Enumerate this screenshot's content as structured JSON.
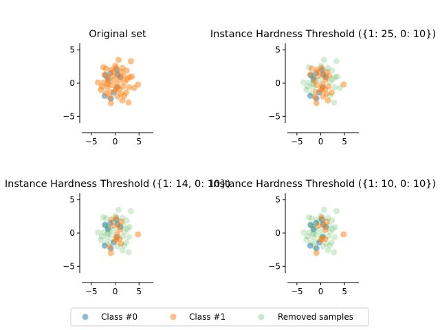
{
  "colors": {
    "class0": "#1f77b4",
    "class1": "#ff7f0e",
    "removed": "#2ca02c"
  },
  "legend": {
    "placement": "bottom-center",
    "entries": [
      "Class #0",
      "Class #1",
      "Removed samples"
    ]
  },
  "chart_data": [
    {
      "type": "scatter",
      "title": "Original set",
      "xlim": [
        -7,
        8
      ],
      "ylim": [
        -6,
        6
      ],
      "xticks": [
        -5,
        0,
        5
      ],
      "yticks": [
        -5,
        0,
        5
      ],
      "grid": false,
      "series": [
        {
          "name": "Class #0",
          "points": [
            [
              -2.1,
              1.2
            ],
            [
              -1.0,
              1.5
            ],
            [
              0.3,
              2.0
            ],
            [
              0.5,
              1.3
            ],
            [
              -1.5,
              0.6
            ],
            [
              -2.2,
              -1.9
            ],
            [
              -0.9,
              -2.3
            ],
            [
              0.4,
              -0.6
            ],
            [
              1.1,
              0.9
            ],
            [
              -0.3,
              -1.4
            ]
          ]
        },
        {
          "name": "Class #1",
          "points": [
            [
              -2.5,
              2.4
            ],
            [
              -1.9,
              2.2
            ],
            [
              -0.8,
              2.0
            ],
            [
              0.2,
              2.3
            ],
            [
              1.5,
              2.3
            ],
            [
              3.3,
              3.3
            ],
            [
              0.7,
              3.5
            ],
            [
              2.4,
              1.9
            ],
            [
              -3.6,
              0.1
            ],
            [
              -2.2,
              1.3
            ],
            [
              -1.6,
              0.9
            ],
            [
              -0.6,
              1.1
            ],
            [
              0.6,
              1.2
            ],
            [
              1.8,
              1.1
            ],
            [
              3.0,
              0.9
            ],
            [
              3.5,
              1.0
            ],
            [
              -2.4,
              0.1
            ],
            [
              -1.3,
              0.3
            ],
            [
              -0.2,
              0.5
            ],
            [
              1.0,
              0.5
            ],
            [
              2.0,
              0.2
            ],
            [
              -3.0,
              -1.0
            ],
            [
              -1.7,
              -0.6
            ],
            [
              -0.8,
              -0.3
            ],
            [
              0.4,
              -0.2
            ],
            [
              1.6,
              -0.5
            ],
            [
              2.9,
              -0.6
            ],
            [
              4.0,
              -0.7
            ],
            [
              4.8,
              -0.2
            ],
            [
              -2.0,
              -1.5
            ],
            [
              -1.0,
              -1.3
            ],
            [
              0.1,
              -1.1
            ],
            [
              1.2,
              -1.6
            ],
            [
              2.3,
              -1.4
            ],
            [
              -1.2,
              -2.1
            ],
            [
              0.5,
              -2.0
            ],
            [
              1.5,
              -2.6
            ],
            [
              2.8,
              -2.9
            ],
            [
              -0.9,
              -3.0
            ],
            [
              0.2,
              -0.8
            ],
            [
              -0.4,
              1.7
            ],
            [
              1.3,
              1.7
            ],
            [
              -2.8,
              -0.5
            ],
            [
              0.9,
              -0.9
            ],
            [
              2.5,
              0.6
            ],
            [
              -1.6,
              -0.1
            ],
            [
              0.0,
              2.6
            ],
            [
              1.9,
              -1.9
            ]
          ]
        }
      ]
    },
    {
      "type": "scatter",
      "title": "Instance Hardness Threshold ({1: 25, 0: 10})",
      "xlim": [
        -7,
        8
      ],
      "ylim": [
        -6,
        6
      ],
      "xticks": [
        -5,
        0,
        5
      ],
      "yticks": [
        -5,
        0,
        5
      ],
      "grid": false,
      "series": [
        {
          "name": "Class #0",
          "points": [
            [
              -2.1,
              1.2
            ],
            [
              -1.0,
              1.5
            ],
            [
              0.3,
              2.0
            ],
            [
              0.5,
              1.3
            ],
            [
              -1.5,
              0.6
            ],
            [
              -2.2,
              -1.9
            ],
            [
              -0.9,
              -2.3
            ],
            [
              0.4,
              -0.6
            ],
            [
              1.1,
              0.9
            ],
            [
              -0.3,
              -1.4
            ]
          ]
        },
        {
          "name": "Class #1",
          "points": [
            [
              -1.9,
              2.2
            ],
            [
              -0.8,
              2.0
            ],
            [
              0.2,
              2.3
            ],
            [
              -2.2,
              1.3
            ],
            [
              -0.6,
              1.1
            ],
            [
              0.6,
              1.2
            ],
            [
              1.8,
              1.1
            ],
            [
              -1.3,
              0.3
            ],
            [
              1.0,
              0.5
            ],
            [
              -0.8,
              -0.3
            ],
            [
              0.4,
              -0.2
            ],
            [
              1.6,
              -0.5
            ],
            [
              4.8,
              -0.2
            ],
            [
              -1.0,
              -1.3
            ],
            [
              0.1,
              -1.1
            ],
            [
              1.2,
              -1.6
            ],
            [
              2.3,
              -1.4
            ],
            [
              -1.2,
              -2.1
            ],
            [
              0.5,
              -2.0
            ],
            [
              1.5,
              -2.6
            ],
            [
              -0.9,
              -3.0
            ],
            [
              0.2,
              -0.8
            ],
            [
              -0.4,
              1.7
            ],
            [
              1.3,
              1.7
            ],
            [
              0.9,
              -0.9
            ]
          ]
        },
        {
          "name": "Removed samples",
          "points": [
            [
              -2.5,
              2.4
            ],
            [
              1.5,
              2.3
            ],
            [
              3.3,
              3.3
            ],
            [
              0.7,
              3.5
            ],
            [
              2.4,
              1.9
            ],
            [
              -3.6,
              0.1
            ],
            [
              -1.6,
              0.9
            ],
            [
              3.0,
              0.9
            ],
            [
              3.5,
              1.0
            ],
            [
              -2.4,
              0.1
            ],
            [
              -0.2,
              0.5
            ],
            [
              2.0,
              0.2
            ],
            [
              -3.0,
              -1.0
            ],
            [
              -1.7,
              -0.6
            ],
            [
              2.9,
              -0.6
            ],
            [
              4.0,
              -0.7
            ],
            [
              -2.0,
              -1.5
            ],
            [
              2.8,
              -2.9
            ],
            [
              -2.8,
              -0.5
            ],
            [
              2.5,
              0.6
            ],
            [
              -1.6,
              -0.1
            ],
            [
              0.0,
              2.6
            ],
            [
              1.9,
              -1.9
            ]
          ]
        }
      ]
    },
    {
      "type": "scatter",
      "title": "Instance Hardness Threshold ({1: 14, 0: 10})",
      "xlim": [
        -7,
        8
      ],
      "ylim": [
        -6,
        6
      ],
      "xticks": [
        -5,
        0,
        5
      ],
      "yticks": [
        -5,
        0,
        5
      ],
      "grid": false,
      "series": [
        {
          "name": "Class #0",
          "points": [
            [
              -2.1,
              1.2
            ],
            [
              -1.0,
              1.5
            ],
            [
              0.3,
              2.0
            ],
            [
              0.5,
              1.3
            ],
            [
              -1.5,
              0.6
            ],
            [
              -2.2,
              -1.9
            ],
            [
              -0.9,
              -2.3
            ],
            [
              0.4,
              -0.6
            ],
            [
              1.1,
              0.9
            ],
            [
              -0.3,
              -1.4
            ]
          ]
        },
        {
          "name": "Class #1",
          "points": [
            [
              -0.8,
              2.0
            ],
            [
              0.2,
              2.3
            ],
            [
              -0.6,
              1.1
            ],
            [
              0.6,
              1.2
            ],
            [
              1.0,
              0.5
            ],
            [
              0.4,
              -0.2
            ],
            [
              4.8,
              -0.2
            ],
            [
              0.1,
              -1.1
            ],
            [
              1.2,
              -1.6
            ],
            [
              -1.2,
              -2.1
            ],
            [
              -0.9,
              -3.0
            ],
            [
              0.2,
              -0.8
            ],
            [
              1.3,
              1.7
            ],
            [
              0.9,
              -0.9
            ]
          ]
        },
        {
          "name": "Removed samples",
          "points": [
            [
              -2.5,
              2.4
            ],
            [
              -1.9,
              2.2
            ],
            [
              1.5,
              2.3
            ],
            [
              3.3,
              3.3
            ],
            [
              0.7,
              3.5
            ],
            [
              2.4,
              1.9
            ],
            [
              -3.6,
              0.1
            ],
            [
              -2.2,
              1.3
            ],
            [
              -1.6,
              0.9
            ],
            [
              1.8,
              1.1
            ],
            [
              3.0,
              0.9
            ],
            [
              -2.4,
              0.1
            ],
            [
              -1.3,
              0.3
            ],
            [
              -0.2,
              0.5
            ],
            [
              2.0,
              0.2
            ],
            [
              -3.0,
              -1.0
            ],
            [
              -1.7,
              -0.6
            ],
            [
              -0.8,
              -0.3
            ],
            [
              1.6,
              -0.5
            ],
            [
              2.9,
              -0.6
            ],
            [
              -2.0,
              -1.5
            ],
            [
              -1.0,
              -1.3
            ],
            [
              2.3,
              -1.4
            ],
            [
              0.5,
              -2.0
            ],
            [
              1.5,
              -2.6
            ],
            [
              2.8,
              -2.9
            ],
            [
              -0.4,
              1.7
            ],
            [
              -2.8,
              -0.5
            ],
            [
              2.5,
              0.6
            ],
            [
              -1.6,
              -0.1
            ],
            [
              0.0,
              2.6
            ],
            [
              1.9,
              -1.9
            ]
          ]
        }
      ]
    },
    {
      "type": "scatter",
      "title": "Instance Hardness Threshold ({1: 10, 0: 10})",
      "xlim": [
        -7,
        8
      ],
      "ylim": [
        -6,
        6
      ],
      "xticks": [
        -5,
        0,
        5
      ],
      "yticks": [
        -5,
        0,
        5
      ],
      "grid": false,
      "series": [
        {
          "name": "Class #0",
          "points": [
            [
              -2.1,
              1.2
            ],
            [
              -1.0,
              1.5
            ],
            [
              0.3,
              2.0
            ],
            [
              0.5,
              1.3
            ],
            [
              -1.5,
              0.6
            ],
            [
              -2.2,
              -1.9
            ],
            [
              -0.9,
              -2.3
            ],
            [
              0.4,
              -0.6
            ],
            [
              1.1,
              0.9
            ],
            [
              -0.3,
              -1.4
            ]
          ]
        },
        {
          "name": "Class #1",
          "points": [
            [
              0.2,
              2.3
            ],
            [
              -0.6,
              1.1
            ],
            [
              0.6,
              1.2
            ],
            [
              1.0,
              0.5
            ],
            [
              4.8,
              -0.2
            ],
            [
              0.1,
              -1.1
            ],
            [
              -0.9,
              -3.0
            ],
            [
              0.2,
              -0.8
            ],
            [
              1.3,
              1.7
            ],
            [
              0.9,
              -0.9
            ]
          ]
        },
        {
          "name": "Removed samples",
          "points": [
            [
              -2.5,
              2.4
            ],
            [
              -1.9,
              2.2
            ],
            [
              -0.8,
              2.0
            ],
            [
              1.5,
              2.3
            ],
            [
              3.3,
              3.3
            ],
            [
              0.7,
              3.5
            ],
            [
              2.4,
              1.9
            ],
            [
              -3.6,
              0.1
            ],
            [
              -2.2,
              1.3
            ],
            [
              -1.6,
              0.9
            ],
            [
              1.8,
              1.1
            ],
            [
              3.0,
              0.9
            ],
            [
              -2.4,
              0.1
            ],
            [
              -1.3,
              0.3
            ],
            [
              -0.2,
              0.5
            ],
            [
              2.0,
              0.2
            ],
            [
              -3.0,
              -1.0
            ],
            [
              -1.7,
              -0.6
            ],
            [
              -0.8,
              -0.3
            ],
            [
              0.4,
              -0.2
            ],
            [
              1.6,
              -0.5
            ],
            [
              2.9,
              -0.6
            ],
            [
              -2.0,
              -1.5
            ],
            [
              -1.0,
              -1.3
            ],
            [
              1.2,
              -1.6
            ],
            [
              2.3,
              -1.4
            ],
            [
              -1.2,
              -2.1
            ],
            [
              0.5,
              -2.0
            ],
            [
              1.5,
              -2.6
            ],
            [
              2.8,
              -2.9
            ],
            [
              -0.4,
              1.7
            ],
            [
              -2.8,
              -0.5
            ],
            [
              2.5,
              0.6
            ],
            [
              -1.6,
              -0.1
            ],
            [
              0.0,
              2.6
            ],
            [
              1.9,
              -1.9
            ]
          ]
        }
      ]
    }
  ]
}
